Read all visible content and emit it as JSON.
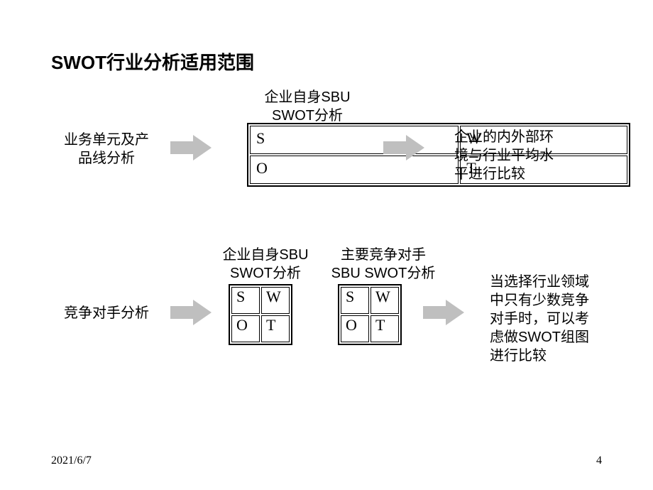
{
  "title": "SWOT行业分析适用范围",
  "row1": {
    "left_label": "业务单元及产\n品线分析",
    "swot_title": "企业自身SBU\nSWOT分析",
    "cells": {
      "s": "S",
      "w": "W",
      "o": "O",
      "t": "T"
    },
    "right_overlay": "企业的内外部环\n境与行业平均水\n平进行比较"
  },
  "row2": {
    "left_label": "竞争对手分析",
    "swot_title_1": "企业自身SBU\nSWOT分析",
    "swot_title_2": "主要竞争对手\nSBU SWOT分析",
    "cells": {
      "s": "S",
      "w": "W",
      "o": "O",
      "t": "T"
    },
    "right_label": "当选择行业领域\n中只有少数竞争\n对手时，可以考\n虑做SWOT组图\n进行比较"
  },
  "footer": {
    "date": "2021/6/7",
    "page": "4"
  },
  "style": {
    "arrow_fill": "#bfbfbf",
    "text_color": "#000000",
    "bg_color": "#ffffff",
    "font_title": 26,
    "font_body": 20,
    "font_swot": 22
  }
}
